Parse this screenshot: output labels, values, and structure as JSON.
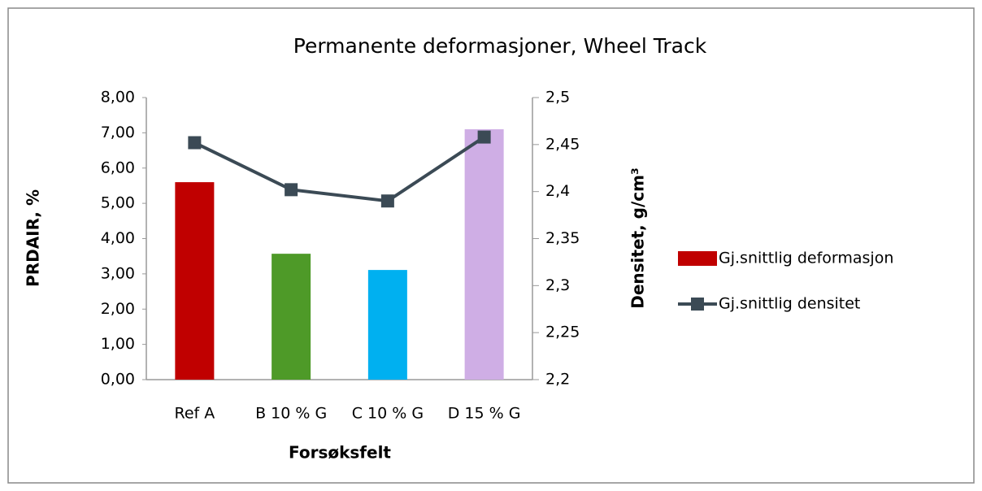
{
  "chart_data": {
    "type": "bar",
    "title": "Permanente deformasjoner, Wheel Track",
    "categories": [
      "Ref A",
      "B 10 % G",
      "C 10 % G",
      "D 15 % G"
    ],
    "series": [
      {
        "name": "Gj.snittlig deformasjon",
        "color": "#c00000",
        "colors": [
          "#c00000",
          "#4e9a28",
          "#00b0f0",
          "#cfaee5"
        ],
        "values": [
          5.6,
          3.57,
          3.11,
          7.1
        ]
      },
      {
        "name": "Gj.snittlig densitet",
        "type": "line",
        "axis": "y2",
        "color": "#3b4a55",
        "values": [
          2.452,
          2.402,
          2.39,
          2.458
        ]
      }
    ],
    "ylabel": "PRDAIR, %",
    "y2label": "Densitet, g/cm³",
    "xlabel": "Forsøksfelt",
    "ylim": [
      0,
      8
    ],
    "yticks": [
      {
        "value": 0,
        "label": "0,00"
      },
      {
        "value": 1,
        "label": "1,00"
      },
      {
        "value": 2,
        "label": "2,00"
      },
      {
        "value": 3,
        "label": "3,00"
      },
      {
        "value": 4,
        "label": "4,00"
      },
      {
        "value": 5,
        "label": "5,00"
      },
      {
        "value": 6,
        "label": "6,00"
      },
      {
        "value": 7,
        "label": "7,00"
      },
      {
        "value": 8,
        "label": "8,00"
      }
    ],
    "y2lim": [
      2.2,
      2.5
    ],
    "y2ticks": [
      {
        "value": 2.2,
        "label": "2,2"
      },
      {
        "value": 2.25,
        "label": "2,25"
      },
      {
        "value": 2.3,
        "label": "2,3"
      },
      {
        "value": 2.35,
        "label": "2,35"
      },
      {
        "value": 2.4,
        "label": "2,4"
      },
      {
        "value": 2.45,
        "label": "2,45"
      },
      {
        "value": 2.5,
        "label": "2,5"
      }
    ],
    "legend": "right"
  }
}
